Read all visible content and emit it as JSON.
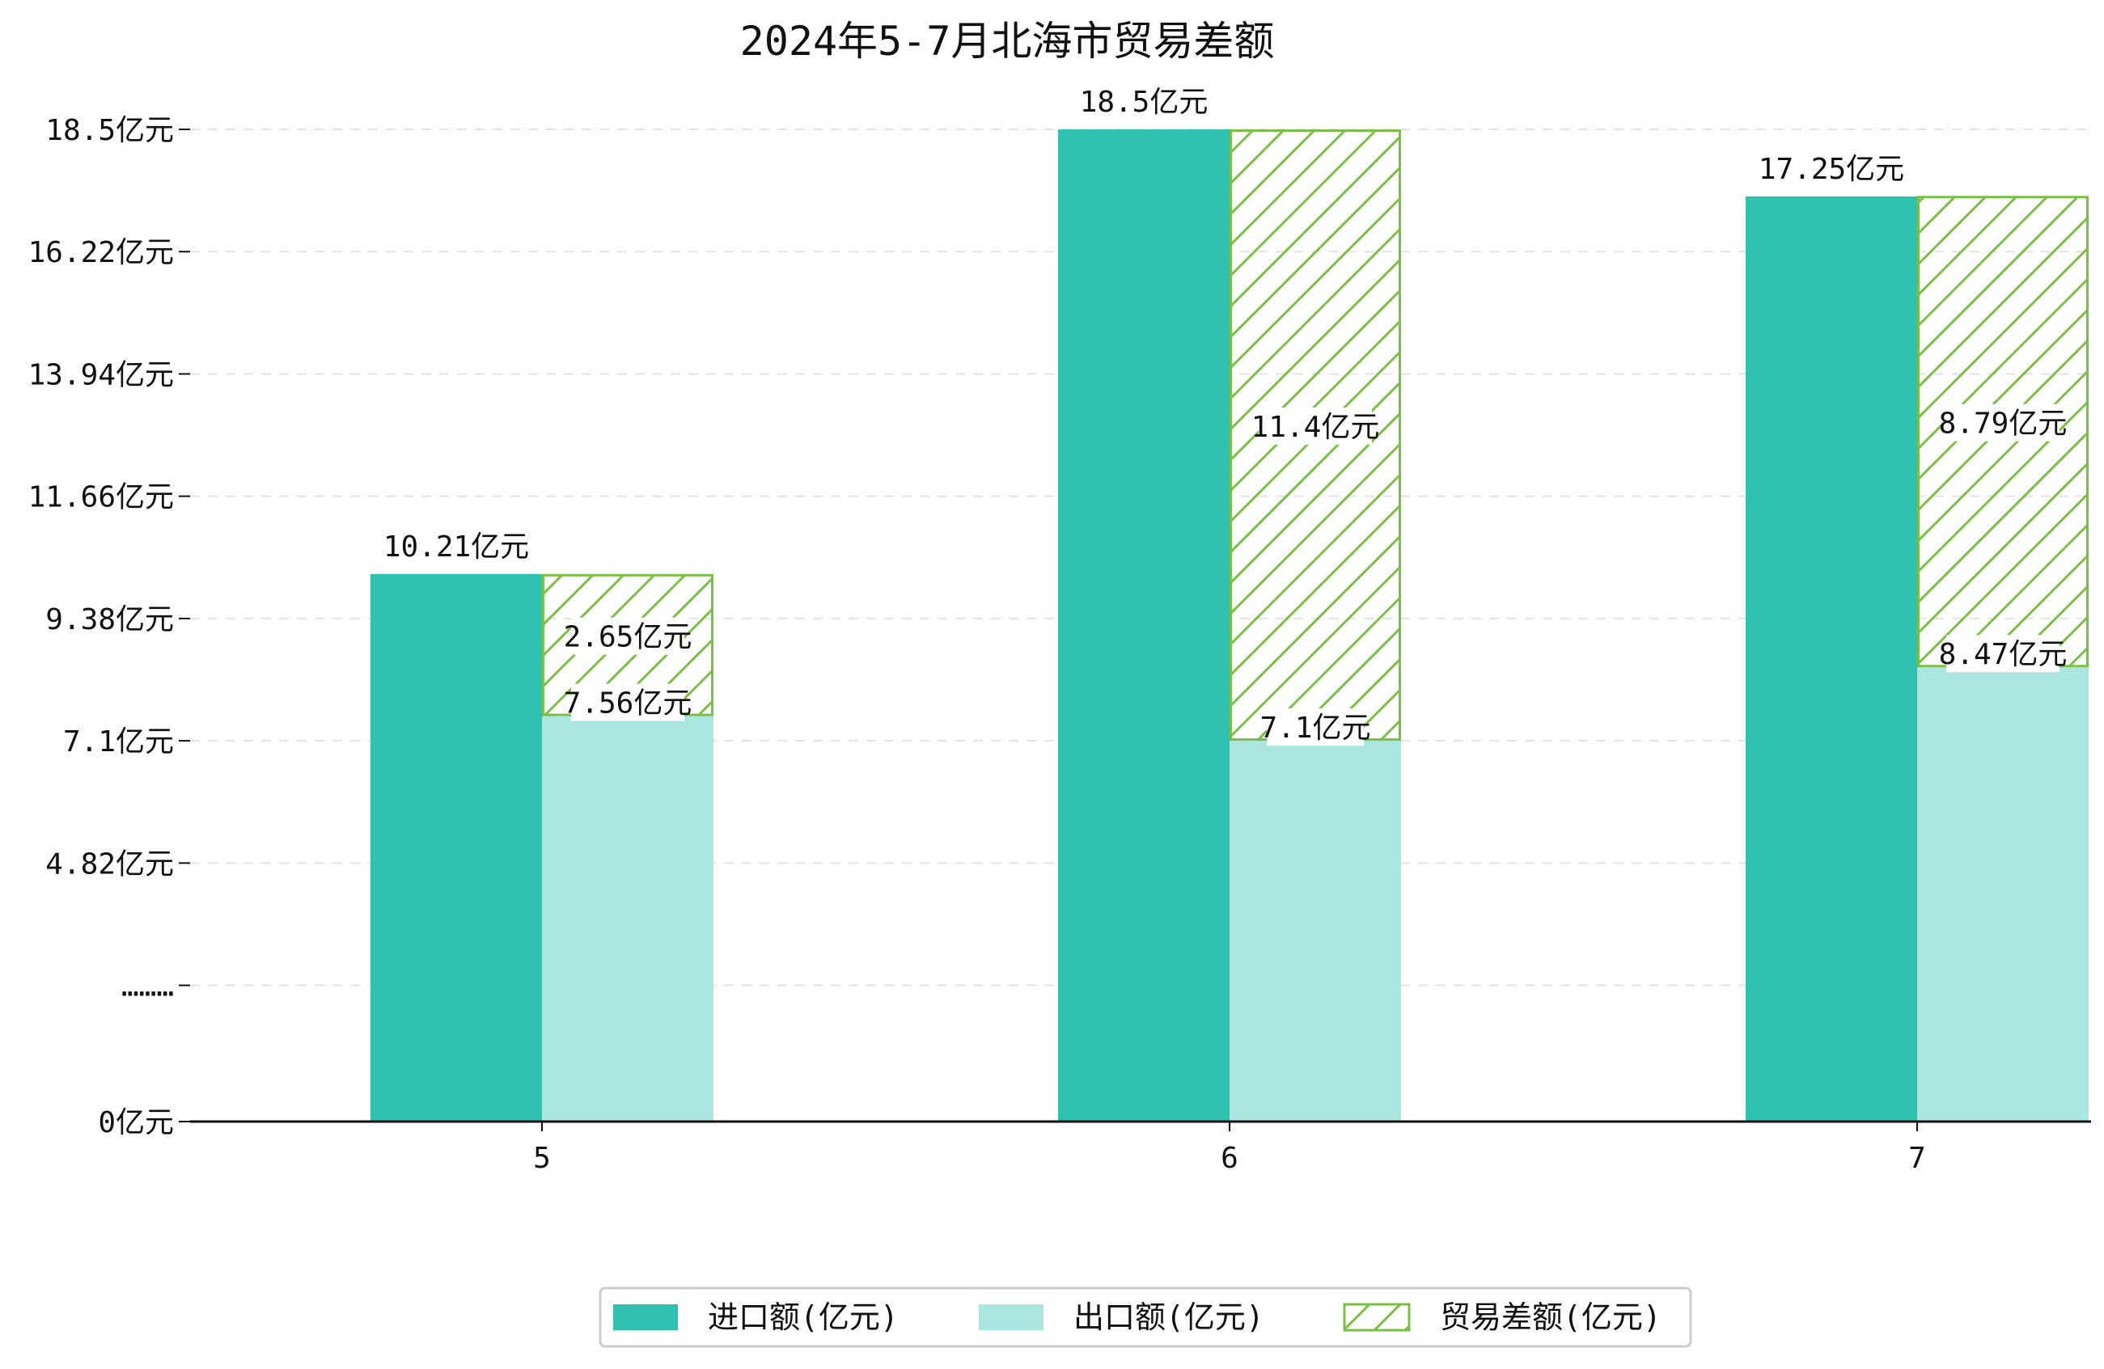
{
  "chart_data": {
    "type": "bar",
    "title": "2024年5-7月北海市贸易差额",
    "categories": [
      "5",
      "6",
      "7"
    ],
    "series": [
      {
        "name": "进口额(亿元)",
        "values": [
          10.21,
          18.5,
          17.25
        ],
        "labels": [
          "10.21亿元",
          "18.5亿元",
          "17.25亿元"
        ],
        "color": "#2ec0b0"
      },
      {
        "name": "出口额(亿元)",
        "values": [
          7.56,
          7.1,
          8.47
        ],
        "labels": [
          "7.56亿元",
          "7.1亿元",
          "8.47亿元"
        ],
        "color": "#abe6e1"
      },
      {
        "name": "贸易差额(亿元)",
        "values": [
          2.65,
          11.4,
          8.79
        ],
        "labels": [
          "2.65亿元",
          "11.4亿元",
          "8.79亿元"
        ],
        "color": "#7bbf45",
        "pattern": "diagonal-hatch"
      }
    ],
    "y_ticks": [
      {
        "value": 0,
        "label": "0亿元"
      },
      {
        "value": 2.54,
        "label": "………"
      },
      {
        "value": 4.82,
        "label": "4.82亿元"
      },
      {
        "value": 7.1,
        "label": "7.1亿元"
      },
      {
        "value": 9.38,
        "label": "9.38亿元"
      },
      {
        "value": 11.66,
        "label": "11.66亿元"
      },
      {
        "value": 13.94,
        "label": "13.94亿元"
      },
      {
        "value": 16.22,
        "label": "16.22亿元"
      },
      {
        "value": 18.5,
        "label": "18.5亿元"
      }
    ],
    "ylim": [
      0,
      18.5
    ],
    "grid": "horizontal-dashed",
    "legend_position": "bottom-center",
    "xlabel": "",
    "ylabel": ""
  }
}
